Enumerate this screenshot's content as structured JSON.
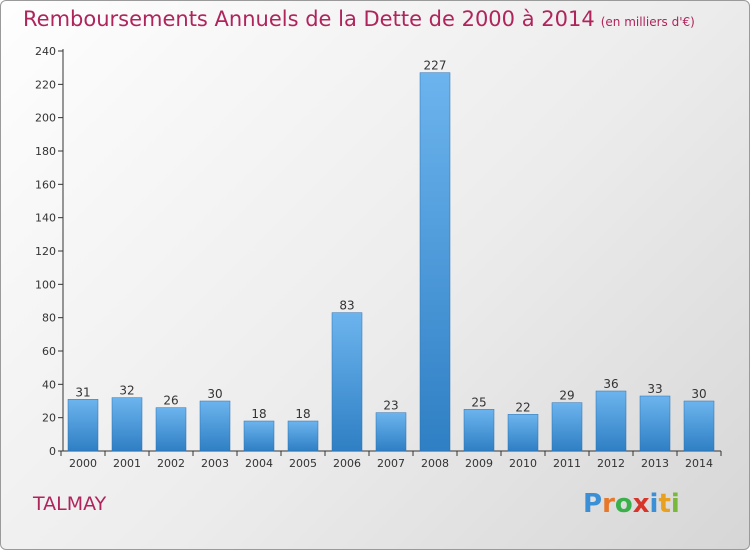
{
  "header": {
    "title": "Remboursements Annuels de la Dette de 2000 à 2014",
    "subtitle": "(en milliers d'€)"
  },
  "footer": {
    "commune": "TALMAY",
    "logo_letters": [
      "P",
      "r",
      "o",
      "x",
      "i",
      "t",
      "i"
    ],
    "logo_colors": [
      "#3a8fd6",
      "#e8772a",
      "#3ab04a",
      "#d8342a",
      "#3a8fd6",
      "#e8a020",
      "#7ab83a"
    ]
  },
  "colors": {
    "title": "#b0245c",
    "bar_light": "#6cb4ee",
    "bar_dark": "#2f7fc4",
    "axis": "#333333"
  },
  "chart_data": {
    "type": "bar",
    "title": "Remboursements Annuels de la Dette de 2000 à 2014",
    "subtitle": "(en milliers d'€)",
    "xlabel": "",
    "ylabel": "",
    "categories": [
      "2000",
      "2001",
      "2002",
      "2003",
      "2004",
      "2005",
      "2006",
      "2007",
      "2008",
      "2009",
      "2010",
      "2011",
      "2012",
      "2013",
      "2014"
    ],
    "values": [
      31,
      32,
      26,
      30,
      18,
      18,
      83,
      23,
      227,
      25,
      22,
      29,
      36,
      33,
      30
    ],
    "ylim": [
      0,
      240
    ],
    "yticks": [
      0,
      20,
      40,
      60,
      80,
      100,
      120,
      140,
      160,
      180,
      200,
      220,
      240
    ],
    "grid": false,
    "data_labels": true
  }
}
